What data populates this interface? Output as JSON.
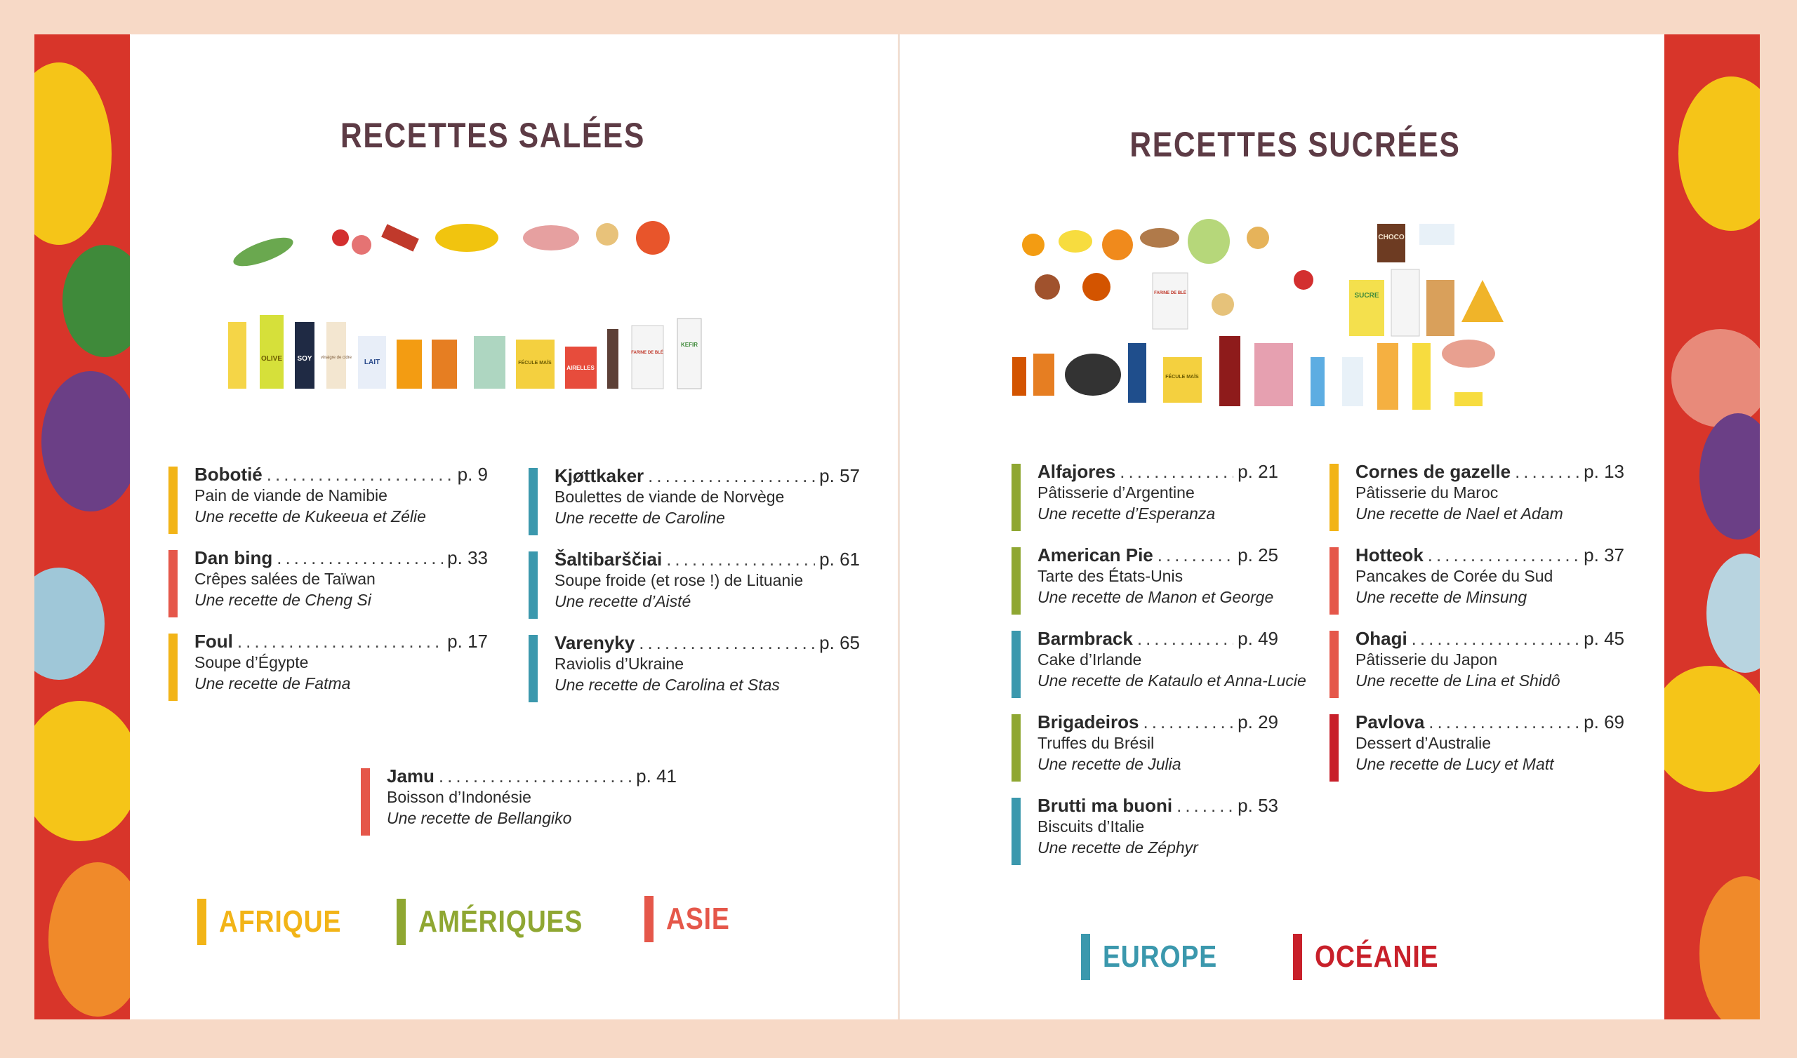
{
  "colors": {
    "afrique": "#f2b417",
    "ameriques": "#8fa732",
    "asie": "#e5574a",
    "europe": "#3b98ad",
    "oceanie": "#c8202a",
    "title": "#5d3b45"
  },
  "left": {
    "title": "RECETTES SALÉES",
    "labels": [
      "OLIVE",
      "SOY",
      "vinaigre de cidre",
      "LAIT",
      "FÉCULE MAÏS",
      "AIRELLES",
      "FARINE DE BLÉ",
      "KEFIR"
    ],
    "entries": [
      {
        "name": "Bobotié",
        "page": "p. 9",
        "sub": "Pain de viande de Namibie",
        "by": "Une recette de Kukeeua et Zélie",
        "region": "afrique"
      },
      {
        "name": "Dan bing",
        "page": "p. 33",
        "sub": "Crêpes salées de Taïwan",
        "by": "Une recette de Cheng Si",
        "region": "asie"
      },
      {
        "name": "Foul",
        "page": "p. 17",
        "sub": "Soupe d’Égypte",
        "by": "Une recette de Fatma",
        "region": "afrique"
      },
      {
        "name": "Kjøttkaker",
        "page": "p. 57",
        "sub": "Boulettes de viande de Norvège",
        "by": "Une recette de Caroline",
        "region": "europe"
      },
      {
        "name": "Šaltibarščiai",
        "page": "p. 61",
        "sub": "Soupe froide (et rose !) de Lituanie",
        "by": "Une recette d’Aisté",
        "region": "europe"
      },
      {
        "name": "Varenyky",
        "page": "p. 65",
        "sub": "Raviolis d’Ukraine",
        "by": "Une recette de Carolina et Stas",
        "region": "europe"
      },
      {
        "name": "Jamu",
        "page": "p. 41",
        "sub": "Boisson d’Indonésie",
        "by": "Une recette de Bellangiko",
        "region": "asie"
      }
    ],
    "continents": [
      {
        "label": "AFRIQUE",
        "region": "afrique"
      },
      {
        "label": "AMÉRIQUES",
        "region": "ameriques"
      },
      {
        "label": "ASIE",
        "region": "asie"
      }
    ]
  },
  "right": {
    "title": "RECETTES SUCRÉES",
    "labels": [
      "CHOCO",
      "SUCRE",
      "FÉCULE MAÏS",
      "FARINE DE BLÉ"
    ],
    "entries": [
      {
        "name": "Alfajores",
        "page": "p. 21",
        "sub": "Pâtisserie d’Argentine",
        "by": "Une recette d’Esperanza",
        "region": "ameriques"
      },
      {
        "name": "American Pie",
        "page": "p. 25",
        "sub": "Tarte des États-Unis",
        "by": "Une recette de Manon et George",
        "region": "ameriques"
      },
      {
        "name": "Barmbrack",
        "page": "p. 49",
        "sub": "Cake d’Irlande",
        "by": "Une recette de Kataulo et Anna-Lucie",
        "region": "europe"
      },
      {
        "name": "Brigadeiros",
        "page": "p. 29",
        "sub": "Truffes du Brésil",
        "by": "Une recette de Julia",
        "region": "ameriques"
      },
      {
        "name": "Brutti ma buoni",
        "page": "p. 53",
        "sub": "Biscuits d’Italie",
        "by": "Une recette de Zéphyr",
        "region": "europe"
      },
      {
        "name": "Cornes de gazelle",
        "page": "p. 13",
        "sub": "Pâtisserie du Maroc",
        "by": "Une recette de Nael et Adam",
        "region": "afrique"
      },
      {
        "name": "Hotteok",
        "page": "p. 37",
        "sub": "Pancakes de Corée du Sud",
        "by": "Une recette de Minsung",
        "region": "asie"
      },
      {
        "name": "Ohagi",
        "page": "p. 45",
        "sub": "Pâtisserie du Japon",
        "by": "Une recette de Lina et Shidô",
        "region": "asie"
      },
      {
        "name": "Pavlova",
        "page": "p. 69",
        "sub": "Dessert d’Australie",
        "by": "Une recette de Lucy et Matt",
        "region": "oceanie"
      }
    ],
    "continents": [
      {
        "label": "EUROPE",
        "region": "europe"
      },
      {
        "label": "OCÉANIE",
        "region": "oceanie"
      }
    ]
  }
}
